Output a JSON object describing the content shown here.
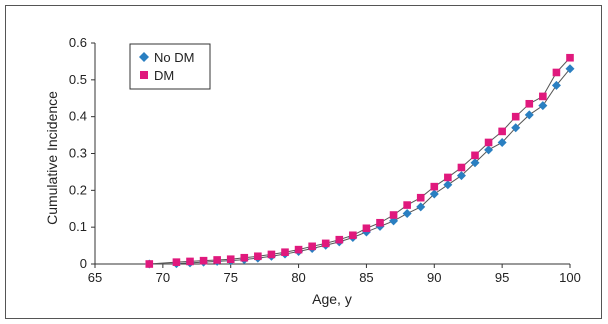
{
  "chart_data": {
    "type": "line",
    "xlabel": "Age, y",
    "ylabel": "Cumulative Incidence",
    "xlim": [
      65,
      100
    ],
    "ylim": [
      0,
      0.6
    ],
    "x_ticks": [
      65,
      70,
      75,
      80,
      85,
      90,
      95,
      100
    ],
    "y_ticks": [
      "0",
      "0.1",
      "0.2",
      "0.3",
      "0.4",
      "0.5",
      "0.6"
    ],
    "grid": false,
    "legend_position": "top-left",
    "series": [
      {
        "name": "No DM",
        "color": "#2a7fc1",
        "marker": "diamond",
        "x": [
          69,
          71,
          72,
          73,
          74,
          75,
          76,
          77,
          78,
          79,
          80,
          81,
          82,
          83,
          84,
          85,
          86,
          87,
          88,
          89,
          90,
          91,
          92,
          93,
          94,
          95,
          96,
          97,
          98,
          99,
          100
        ],
        "y": [
          0,
          0.001,
          0.003,
          0.005,
          0.007,
          0.009,
          0.012,
          0.016,
          0.021,
          0.027,
          0.034,
          0.042,
          0.051,
          0.06,
          0.072,
          0.087,
          0.102,
          0.117,
          0.137,
          0.155,
          0.19,
          0.215,
          0.24,
          0.275,
          0.31,
          0.33,
          0.37,
          0.405,
          0.43,
          0.485,
          0.53
        ]
      },
      {
        "name": "DM",
        "color": "#e0197d",
        "marker": "square",
        "x": [
          69,
          71,
          72,
          73,
          74,
          75,
          76,
          77,
          78,
          79,
          80,
          81,
          82,
          83,
          84,
          85,
          86,
          87,
          88,
          89,
          90,
          91,
          92,
          93,
          94,
          95,
          96,
          97,
          98,
          99,
          100
        ],
        "y": [
          0,
          0.005,
          0.007,
          0.009,
          0.011,
          0.013,
          0.017,
          0.021,
          0.026,
          0.032,
          0.039,
          0.048,
          0.056,
          0.066,
          0.078,
          0.097,
          0.112,
          0.133,
          0.16,
          0.18,
          0.21,
          0.235,
          0.262,
          0.295,
          0.33,
          0.36,
          0.4,
          0.435,
          0.455,
          0.52,
          0.56
        ]
      }
    ]
  }
}
